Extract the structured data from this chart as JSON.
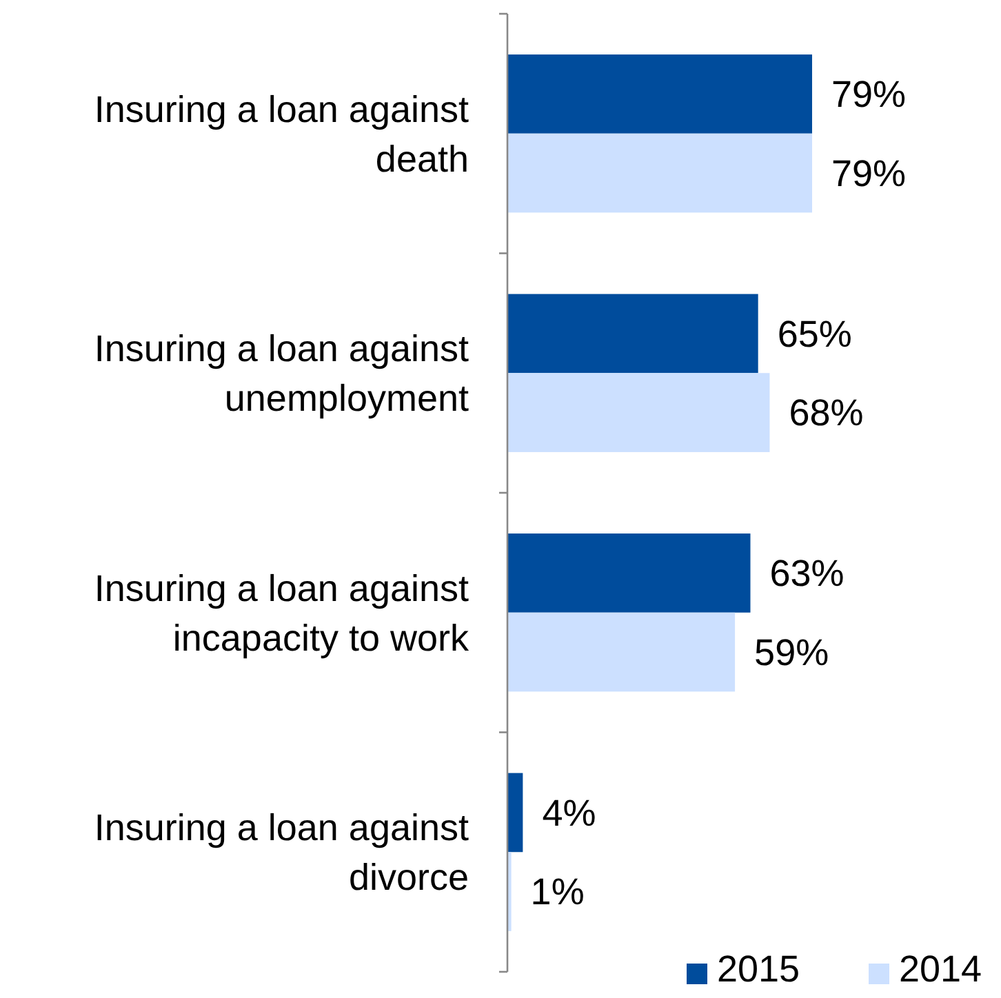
{
  "chart_data": {
    "type": "bar",
    "orientation": "horizontal",
    "categories": [
      "Insuring a loan against death",
      "Insuring a loan against unemployment",
      "Insuring a loan against incapacity to work",
      "Insuring a loan against divorce"
    ],
    "series": [
      {
        "name": "2015",
        "color": "#004c9c",
        "values": [
          79,
          65,
          63,
          4
        ],
        "value_labels": [
          "79%",
          "65%",
          "63%",
          "4%"
        ]
      },
      {
        "name": "2014",
        "color": "#cce0ff",
        "values": [
          79,
          68,
          59,
          1
        ],
        "value_labels": [
          "79%",
          "68%",
          "59%",
          "1%"
        ]
      }
    ],
    "tick_labels": "y",
    "legend": "bottom right"
  }
}
